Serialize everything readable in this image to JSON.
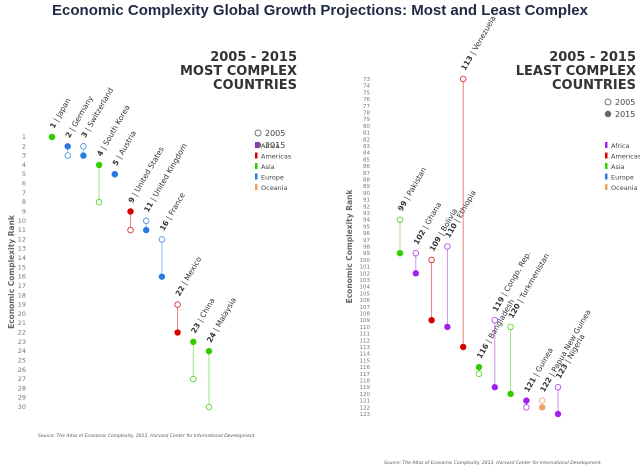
{
  "page": {
    "title": "Economic Complexity Global Growth Projections: Most and Least Complex"
  },
  "colors": {
    "Africa": "#a020f0",
    "Americas": "#d40000",
    "Asia": "#33cc00",
    "Europe": "#2a7ae2",
    "Oceania": "#f0a060"
  },
  "chart_data": [
    {
      "type": "scatter",
      "id": "most",
      "period": "2005 - 2015",
      "title_lines": [
        "MOST COMPLEX",
        "COUNTRIES"
      ],
      "ylabel": "Economic Complexity Rank",
      "ylim": [
        1,
        30
      ],
      "ticks": [
        1,
        2,
        3,
        4,
        5,
        6,
        7,
        8,
        9,
        10,
        11,
        12,
        13,
        14,
        15,
        16,
        17,
        18,
        19,
        20,
        21,
        22,
        23,
        24,
        25,
        26,
        27,
        28,
        29,
        30
      ],
      "legend_years": [
        "2005",
        "2015"
      ],
      "legend_regions": [
        "Africa",
        "Americas",
        "Asia",
        "Europe",
        "Oceania"
      ],
      "source": "Source: The Atlas of Economic Complexity, 2013, Harvard Center for International Development.",
      "countries": [
        {
          "name": "Japan",
          "rank_2015": 1,
          "rank_2005": 1,
          "region": "Asia"
        },
        {
          "name": "Germany",
          "rank_2015": 2,
          "rank_2005": 3,
          "region": "Europe"
        },
        {
          "name": "Switzerland",
          "rank_2015": 3,
          "rank_2005": 2,
          "region": "Europe"
        },
        {
          "name": "South Korea",
          "rank_2015": 4,
          "rank_2005": 8,
          "region": "Asia"
        },
        {
          "name": "Austria",
          "rank_2015": 5,
          "rank_2005": 5,
          "region": "Europe"
        },
        {
          "name": "United States",
          "rank_2015": 9,
          "rank_2005": 11,
          "region": "Americas"
        },
        {
          "name": "United Kingdom",
          "rank_2015": 11,
          "rank_2005": 10,
          "region": "Europe"
        },
        {
          "name": "France",
          "rank_2015": 16,
          "rank_2005": 12,
          "region": "Europe"
        },
        {
          "name": "Mexico",
          "rank_2015": 22,
          "rank_2005": 19,
          "region": "Americas"
        },
        {
          "name": "China",
          "rank_2015": 23,
          "rank_2005": 27,
          "region": "Asia"
        },
        {
          "name": "Malaysia",
          "rank_2015": 24,
          "rank_2005": 30,
          "region": "Asia"
        }
      ]
    },
    {
      "type": "scatter",
      "id": "least",
      "period": "2005 - 2015",
      "title_lines": [
        "LEAST COMPLEX",
        "COUNTRIES"
      ],
      "ylabel": "Economic Complexity Rank",
      "ylim": [
        73,
        123
      ],
      "ticks": [
        73,
        74,
        75,
        76,
        77,
        78,
        79,
        80,
        81,
        82,
        83,
        84,
        85,
        86,
        87,
        88,
        89,
        90,
        91,
        92,
        93,
        94,
        95,
        96,
        97,
        98,
        99,
        100,
        101,
        102,
        103,
        104,
        105,
        106,
        107,
        108,
        109,
        110,
        111,
        112,
        113,
        114,
        115,
        116,
        117,
        118,
        119,
        120,
        121,
        122,
        123
      ],
      "legend_years": [
        "2005",
        "2015"
      ],
      "legend_regions": [
        "Africa",
        "Americas",
        "Asia",
        "Europe",
        "Oceania"
      ],
      "source": "Source: The Atlas of Economic Complexity, 2013, Harvard Center for International Development.",
      "countries": [
        {
          "name": "Pakistan",
          "rank_2015": 99,
          "rank_2005": 94,
          "region": "Asia"
        },
        {
          "name": "Ghana",
          "rank_2015": 102,
          "rank_2005": 99,
          "region": "Africa"
        },
        {
          "name": "Bolivia",
          "rank_2015": 109,
          "rank_2005": 100,
          "region": "Americas"
        },
        {
          "name": "Ethiopia",
          "rank_2015": 110,
          "rank_2005": 98,
          "region": "Africa"
        },
        {
          "name": "Venezuela",
          "rank_2015": 113,
          "rank_2005": 73,
          "region": "Americas"
        },
        {
          "name": "Bangladesh",
          "rank_2015": 116,
          "rank_2005": 117,
          "region": "Asia"
        },
        {
          "name": "Congo, Rep.",
          "rank_2015": 119,
          "rank_2005": 109,
          "region": "Africa"
        },
        {
          "name": "Turkmenistan",
          "rank_2015": 120,
          "rank_2005": 110,
          "region": "Asia"
        },
        {
          "name": "Guinea",
          "rank_2015": 121,
          "rank_2005": 122,
          "region": "Africa"
        },
        {
          "name": "Papua New Guinea",
          "rank_2015": 122,
          "rank_2005": 121,
          "region": "Oceania"
        },
        {
          "name": "Nigeria",
          "rank_2015": 123,
          "rank_2005": 119,
          "region": "Africa"
        }
      ]
    }
  ]
}
